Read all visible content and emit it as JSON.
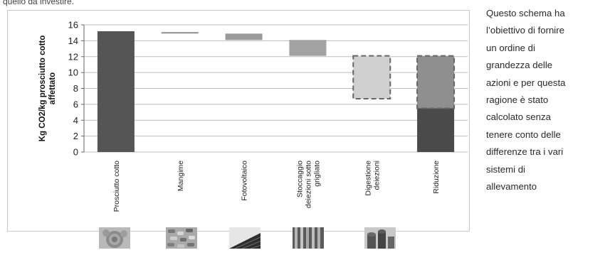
{
  "intro_fragment": "quello da investire.",
  "description_lines": [
    "Questo schema ha",
    "l’obiettivo di fornire",
    "un ordine di",
    "grandezza delle",
    "azioni e per questa",
    "ragione è stato",
    "calcolato senza",
    "tenere conto delle",
    "differenze tra i vari",
    "sistemi di",
    "allevamento"
  ],
  "chart_data": {
    "type": "bar",
    "subtype": "waterfall",
    "ylabel": "Kg CO2/kg prosciutto cotto affettato",
    "ylim": [
      0,
      16
    ],
    "yticks": [
      0,
      2,
      4,
      6,
      8,
      10,
      12,
      14,
      16
    ],
    "grid": true,
    "categories": [
      "Prosciutto cotto",
      "Mangime",
      "Fotovoltaico",
      "Stoccaggio deiezioni sotto grigliato",
      "Digestione deiezioni",
      "Riduzione"
    ],
    "bars": [
      {
        "category": "Prosciutto cotto",
        "base": 0,
        "top": 15.2,
        "color": "#555555",
        "style": "solid"
      },
      {
        "category": "Mangime",
        "base": 14.9,
        "top": 15.1,
        "color": "#9a9a9a",
        "style": "solid"
      },
      {
        "category": "Fotovoltaico",
        "base": 14.1,
        "top": 14.9,
        "color": "#9a9a9a",
        "style": "solid"
      },
      {
        "category": "Stoccaggio deiezioni sotto grigliato",
        "base": 12.1,
        "top": 14.1,
        "color": "#a2a2a2",
        "style": "solid"
      },
      {
        "category": "Digestione deiezioni",
        "base": 6.7,
        "top": 12.1,
        "color": "#d0d0d0",
        "style": "dashed"
      },
      {
        "category": "Riduzione",
        "base": 0,
        "top": 5.5,
        "color": "#4a4a4a",
        "style": "solid"
      },
      {
        "category": "Riduzione",
        "base": 5.5,
        "top": 12.1,
        "color": "#8f8f8f",
        "style": "dashed"
      }
    ]
  },
  "photos": [
    {
      "name": "cabbage-photo-icon",
      "category": "Mangime"
    },
    {
      "name": "feed-pellets-photo-icon",
      "category": "Mangime"
    },
    {
      "name": "solar-panel-photo-icon",
      "category": "Fotovoltaico"
    },
    {
      "name": "grating-photo-icon",
      "category": "Stoccaggio deiezioni sotto grigliato"
    },
    {
      "name": "digester-photo-icon",
      "category": "Digestione deiezioni"
    }
  ]
}
